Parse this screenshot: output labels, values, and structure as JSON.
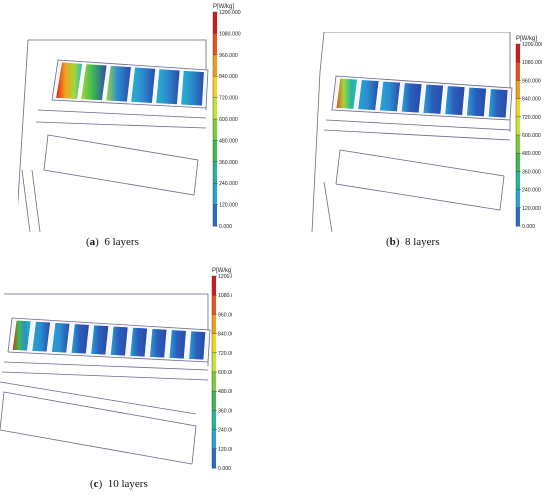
{
  "panels": [
    {
      "id": "a",
      "letter": "a",
      "caption_text": "6 layers",
      "segments": 6,
      "hotspot": "strong"
    },
    {
      "id": "b",
      "letter": "b",
      "caption_text": "8 layers",
      "segments": 8,
      "hotspot": "medium"
    },
    {
      "id": "c",
      "letter": "c",
      "caption_text": "10 layers",
      "segments": 10,
      "hotspot": "weak"
    }
  ],
  "colorbar": {
    "title": "P[W/kg]",
    "ticks": [
      "1200.000",
      "1080.000",
      "960.000",
      "840.000",
      "720.000",
      "600.000",
      "480.000",
      "360.000",
      "240.000",
      "120.000",
      "0.000"
    ],
    "colors": [
      "#d7191c",
      "#e8541b",
      "#f39c1f",
      "#f4d322",
      "#c6e33a",
      "#7ccc3c",
      "#3dba51",
      "#28b49a",
      "#2aa3d6",
      "#2a6fc6",
      "#2a3c9c"
    ]
  }
}
